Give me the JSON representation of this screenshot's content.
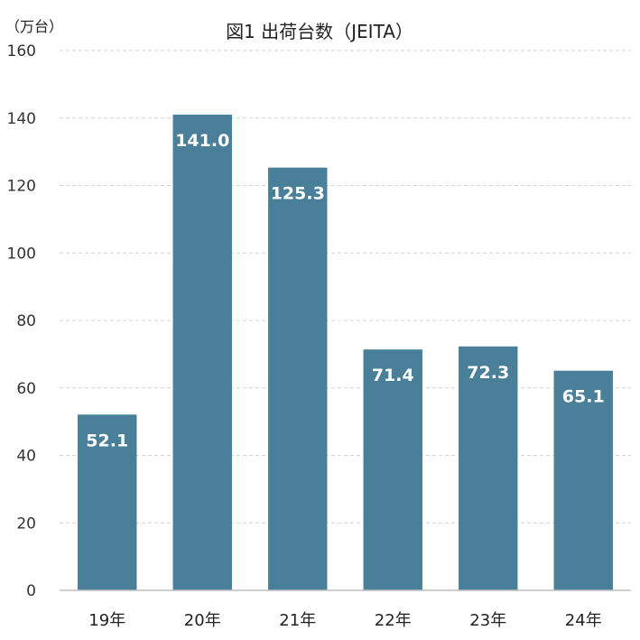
{
  "chart_data": {
    "type": "bar",
    "title": "図1  出荷台数（JEITA）",
    "unit_label": "（万台）",
    "categories": [
      "19年",
      "20年",
      "21年",
      "22年",
      "23年",
      "24年"
    ],
    "values": [
      52.1,
      141.0,
      125.3,
      71.4,
      72.3,
      65.1
    ],
    "value_labels": [
      "52.1",
      "141.0",
      "125.3",
      "71.4",
      "72.3",
      "65.1"
    ],
    "ylim": [
      0,
      160
    ],
    "yticks": [
      0,
      20,
      40,
      60,
      80,
      100,
      120,
      140,
      160
    ],
    "grid": true,
    "bar_color": "#4a7f99"
  }
}
